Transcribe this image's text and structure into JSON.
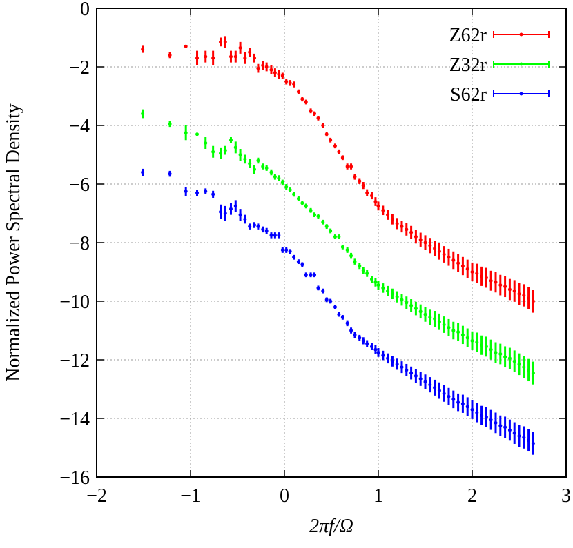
{
  "chart_data": {
    "type": "errorbar",
    "x_label": "2πf/Ω",
    "y_label": "Normalized Power Spectral Density",
    "x": [
      -1.51,
      -1.22,
      -1.05,
      -0.93,
      -0.84,
      -0.76,
      -0.68,
      -0.63,
      -0.57,
      -0.52,
      -0.47,
      -0.42,
      -0.37,
      -0.32,
      -0.28,
      -0.23,
      -0.19,
      -0.14,
      -0.1,
      -0.06,
      -0.02,
      0.02,
      0.06,
      0.1,
      0.15,
      0.19,
      0.23,
      0.28,
      0.32,
      0.36,
      0.41,
      0.45,
      0.49,
      0.54,
      0.58,
      0.62,
      0.67,
      0.71,
      0.75,
      0.8,
      0.84,
      0.88,
      0.93,
      0.97,
      1,
      1.05,
      1.1,
      1.15,
      1.2,
      1.25,
      1.3,
      1.35,
      1.4,
      1.45,
      1.5,
      1.55,
      1.6,
      1.65,
      1.7,
      1.75,
      1.8,
      1.85,
      1.9,
      1.95,
      2,
      2.05,
      2.1,
      2.15,
      2.2,
      2.25,
      2.3,
      2.35,
      2.4,
      2.45,
      2.5,
      2.55,
      2.6,
      2.65
    ],
    "series": [
      {
        "name": "Z62r",
        "color": "#ff0000",
        "values": [
          -1.4,
          -1.6,
          -1.3,
          -1.7,
          -1.65,
          -1.7,
          -1.15,
          -1.15,
          -1.65,
          -1.65,
          -1.35,
          -1.7,
          -1.5,
          -1.7,
          -2.05,
          -1.95,
          -2,
          -2.1,
          -2.2,
          -2.25,
          -2.3,
          -2.5,
          -2.55,
          -2.6,
          -2.85,
          -3.1,
          -3.2,
          -3.5,
          -3.6,
          -3.75,
          -4,
          -4.3,
          -4.5,
          -4.7,
          -4.9,
          -5.1,
          -5.4,
          -5.4,
          -5.75,
          -5.9,
          -6.05,
          -6.3,
          -6.4,
          -6.6,
          -6.75,
          -6.9,
          -7.05,
          -7.2,
          -7.35,
          -7.45,
          -7.55,
          -7.65,
          -7.8,
          -7.9,
          -8,
          -8.1,
          -8.2,
          -8.3,
          -8.4,
          -8.5,
          -8.6,
          -8.7,
          -8.8,
          -8.9,
          -9,
          -9.05,
          -9.15,
          -9.2,
          -9.3,
          -9.35,
          -9.45,
          -9.5,
          -9.6,
          -9.65,
          -9.75,
          -9.8,
          -9.9,
          -10
        ],
        "errors": [
          0.12,
          0.1,
          0.05,
          0.25,
          0.2,
          0.25,
          0.15,
          0.2,
          0.2,
          0.2,
          0.2,
          0.2,
          0.15,
          0.15,
          0.15,
          0.15,
          0.15,
          0.15,
          0.15,
          0.15,
          0.1,
          0.1,
          0.1,
          0.1,
          0.08,
          0.08,
          0.08,
          0.08,
          0.08,
          0.08,
          0.08,
          0.08,
          0.08,
          0.08,
          0.08,
          0.08,
          0.1,
          0.1,
          0.1,
          0.1,
          0.12,
          0.12,
          0.12,
          0.15,
          0.15,
          0.16,
          0.17,
          0.18,
          0.19,
          0.2,
          0.21,
          0.22,
          0.23,
          0.24,
          0.25,
          0.26,
          0.27,
          0.28,
          0.28,
          0.29,
          0.3,
          0.3,
          0.31,
          0.32,
          0.32,
          0.33,
          0.33,
          0.34,
          0.34,
          0.35,
          0.35,
          0.36,
          0.36,
          0.37,
          0.37,
          0.38,
          0.38,
          0.39
        ]
      },
      {
        "name": "Z32r",
        "color": "#00ff00",
        "values": [
          -3.6,
          -3.95,
          -4.25,
          -4.3,
          -4.6,
          -4.9,
          -4.95,
          -4.85,
          -4.5,
          -4.75,
          -5,
          -5.15,
          -5.3,
          -5.5,
          -5.2,
          -5.4,
          -5.45,
          -5.6,
          -5.75,
          -5.8,
          -5.95,
          -6.1,
          -6.2,
          -6.35,
          -6.5,
          -6.65,
          -6.75,
          -6.9,
          -7.05,
          -7.1,
          -7.3,
          -7.45,
          -7.6,
          -7.8,
          -7.8,
          -8.15,
          -8.25,
          -8.45,
          -8.65,
          -8.8,
          -8.95,
          -9.05,
          -9.25,
          -9.35,
          -9.45,
          -9.55,
          -9.65,
          -9.75,
          -9.85,
          -9.95,
          -10.05,
          -10.15,
          -10.25,
          -10.35,
          -10.45,
          -10.55,
          -10.6,
          -10.7,
          -10.8,
          -10.9,
          -11,
          -11.05,
          -11.15,
          -11.25,
          -11.35,
          -11.4,
          -11.5,
          -11.55,
          -11.65,
          -11.75,
          -11.8,
          -11.9,
          -11.95,
          -12.05,
          -12.15,
          -12.25,
          -12.35,
          -12.45
        ],
        "errors": [
          0.15,
          0.1,
          0.25,
          0.05,
          0.2,
          0.2,
          0.2,
          0.15,
          0.1,
          0.2,
          0.2,
          0.15,
          0.15,
          0.15,
          0.1,
          0.1,
          0.1,
          0.1,
          0.1,
          0.1,
          0.1,
          0.1,
          0.08,
          0.08,
          0.08,
          0.08,
          0.08,
          0.08,
          0.08,
          0.08,
          0.08,
          0.08,
          0.08,
          0.08,
          0.08,
          0.08,
          0.1,
          0.1,
          0.1,
          0.1,
          0.12,
          0.12,
          0.12,
          0.15,
          0.15,
          0.16,
          0.17,
          0.18,
          0.19,
          0.2,
          0.21,
          0.22,
          0.23,
          0.24,
          0.25,
          0.26,
          0.27,
          0.28,
          0.28,
          0.29,
          0.3,
          0.3,
          0.31,
          0.32,
          0.32,
          0.33,
          0.33,
          0.34,
          0.34,
          0.35,
          0.35,
          0.36,
          0.36,
          0.37,
          0.37,
          0.38,
          0.38,
          0.39
        ]
      },
      {
        "name": "S62r",
        "color": "#0000ff",
        "values": [
          -5.6,
          -5.65,
          -6.25,
          -6.3,
          -6.25,
          -6.35,
          -6.95,
          -7,
          -6.85,
          -6.75,
          -7.05,
          -7.2,
          -7.45,
          -7.4,
          -7.45,
          -7.55,
          -7.6,
          -7.75,
          -7.75,
          -7.75,
          -8.25,
          -8.25,
          -8.3,
          -8.5,
          -8.65,
          -8.75,
          -9.1,
          -9.1,
          -9.1,
          -9.55,
          -9.65,
          -9.95,
          -10,
          -10.2,
          -10.45,
          -10.55,
          -10.75,
          -11,
          -11.15,
          -11.25,
          -11.35,
          -11.45,
          -11.55,
          -11.65,
          -11.75,
          -11.85,
          -11.95,
          -12.05,
          -12.15,
          -12.25,
          -12.35,
          -12.45,
          -12.55,
          -12.65,
          -12.75,
          -12.85,
          -12.95,
          -13.05,
          -13.15,
          -13.25,
          -13.35,
          -13.45,
          -13.5,
          -13.6,
          -13.7,
          -13.8,
          -13.9,
          -13.95,
          -14.05,
          -14.15,
          -14.25,
          -14.3,
          -14.4,
          -14.5,
          -14.6,
          -14.65,
          -14.75,
          -14.85
        ],
        "errors": [
          0.12,
          0.1,
          0.15,
          0.1,
          0.1,
          0.12,
          0.25,
          0.25,
          0.2,
          0.2,
          0.2,
          0.15,
          0.1,
          0.1,
          0.1,
          0.1,
          0.1,
          0.1,
          0.1,
          0.1,
          0.1,
          0.1,
          0.08,
          0.08,
          0.08,
          0.08,
          0.08,
          0.08,
          0.08,
          0.08,
          0.08,
          0.08,
          0.08,
          0.08,
          0.08,
          0.08,
          0.1,
          0.1,
          0.1,
          0.1,
          0.12,
          0.12,
          0.12,
          0.15,
          0.15,
          0.16,
          0.17,
          0.18,
          0.19,
          0.2,
          0.21,
          0.22,
          0.23,
          0.24,
          0.25,
          0.26,
          0.27,
          0.28,
          0.28,
          0.29,
          0.3,
          0.3,
          0.31,
          0.32,
          0.32,
          0.33,
          0.33,
          0.34,
          0.34,
          0.35,
          0.35,
          0.36,
          0.36,
          0.37,
          0.37,
          0.38,
          0.38,
          0.39
        ]
      }
    ],
    "xlim": [
      -2,
      3
    ],
    "xticks": [
      -2,
      -1,
      0,
      1,
      2,
      3
    ],
    "ylim": [
      -16,
      0
    ],
    "yticks": [
      0,
      -2,
      -4,
      -6,
      -8,
      -10,
      -12,
      -14,
      -16
    ],
    "grid": true,
    "legend": "top-right"
  }
}
